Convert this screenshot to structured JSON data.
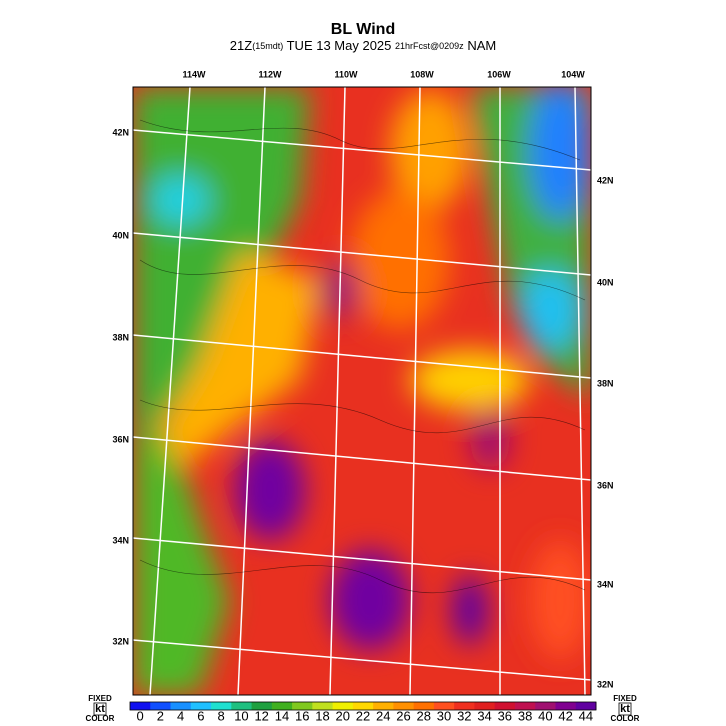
{
  "header": {
    "title": "BL Wind",
    "time": "21Z",
    "local_time": "(15mdt)",
    "date": "TUE 13 May 2025",
    "forecast": "21hrFcst@0209z",
    "model": "NAM"
  },
  "map": {
    "lon_labels": [
      "114W",
      "112W",
      "110W",
      "108W",
      "106W",
      "104W"
    ],
    "lat_labels_left": [
      "42N",
      "40N",
      "38N",
      "36N",
      "34N",
      "32N"
    ],
    "lat_labels_right": [
      "42N",
      "40N",
      "38N",
      "36N",
      "34N",
      "32N"
    ]
  },
  "colorbar": {
    "left_note": [
      "FIXED",
      "kt",
      "COLOR"
    ],
    "right_note": [
      "FIXED",
      "kt",
      "COLOR"
    ],
    "levels": [
      {
        "label": "0",
        "color": "#1010f0"
      },
      {
        "label": "2",
        "color": "#1050ff"
      },
      {
        "label": "4",
        "color": "#1890ff"
      },
      {
        "label": "6",
        "color": "#20c0ff"
      },
      {
        "label": "8",
        "color": "#20e0d0"
      },
      {
        "label": "10",
        "color": "#20c080"
      },
      {
        "label": "12",
        "color": "#20a040"
      },
      {
        "label": "14",
        "color": "#40b020"
      },
      {
        "label": "16",
        "color": "#80c820"
      },
      {
        "label": "18",
        "color": "#c0e020"
      },
      {
        "label": "20",
        "color": "#f0f000"
      },
      {
        "label": "22",
        "color": "#ffd800"
      },
      {
        "label": "24",
        "color": "#ffb000"
      },
      {
        "label": "26",
        "color": "#ff9000"
      },
      {
        "label": "28",
        "color": "#ff7000"
      },
      {
        "label": "30",
        "color": "#ff5020"
      },
      {
        "label": "32",
        "color": "#f03020"
      },
      {
        "label": "34",
        "color": "#e02020"
      },
      {
        "label": "36",
        "color": "#d01030"
      },
      {
        "label": "38",
        "color": "#c01050"
      },
      {
        "label": "40",
        "color": "#a01070"
      },
      {
        "label": "42",
        "color": "#800090"
      },
      {
        "label": "44",
        "color": "#6000a0"
      }
    ]
  }
}
